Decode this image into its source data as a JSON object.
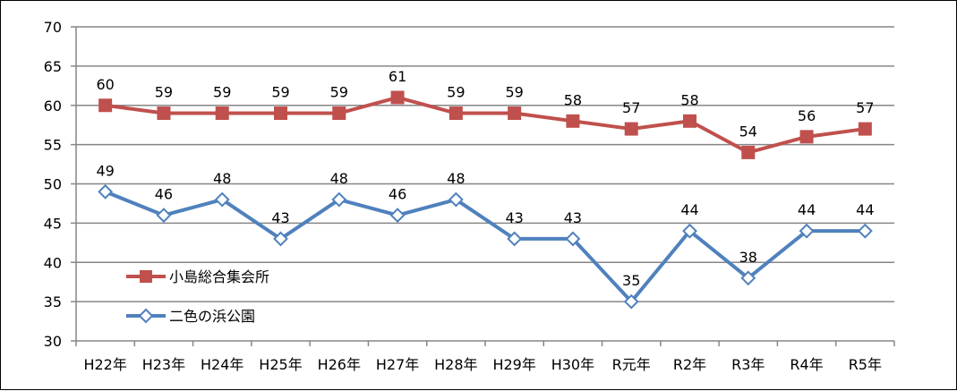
{
  "chart_data": {
    "type": "line",
    "title": "",
    "xlabel": "",
    "ylabel": "",
    "ylim": [
      30,
      70
    ],
    "ystep": 5,
    "grid": true,
    "legend_position": "left-center",
    "categories": [
      "H22年",
      "H23年",
      "H24年",
      "H25年",
      "H26年",
      "H27年",
      "H28年",
      "H29年",
      "H30年",
      "R元年",
      "R2年",
      "R3年",
      "R4年",
      "R5年"
    ],
    "series": [
      {
        "name": "小島総合集会所",
        "color": "#c0504d",
        "marker": "square-filled",
        "values": [
          60,
          59,
          59,
          59,
          59,
          61,
          59,
          59,
          58,
          57,
          58,
          54,
          56,
          57
        ]
      },
      {
        "name": "二色の浜公園",
        "color": "#4f81bd",
        "marker": "diamond-hollow",
        "values": [
          49,
          46,
          48,
          43,
          48,
          46,
          48,
          43,
          43,
          35,
          44,
          38,
          44,
          44
        ]
      }
    ]
  }
}
